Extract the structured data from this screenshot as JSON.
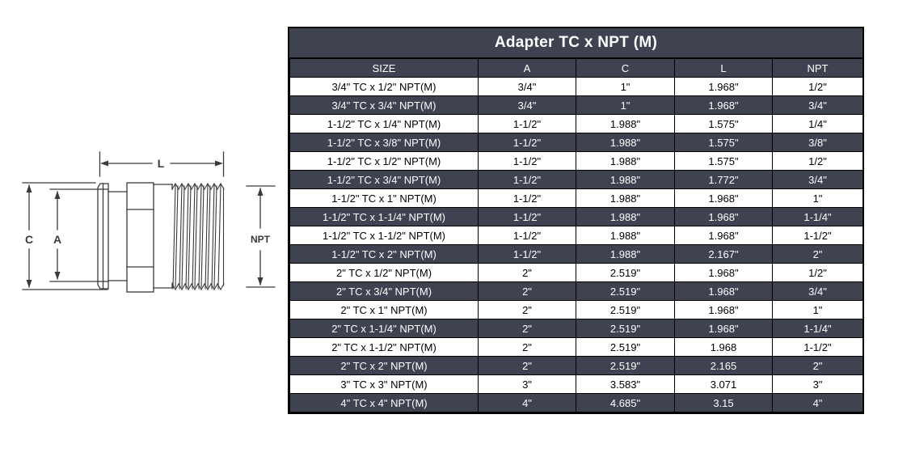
{
  "diagram": {
    "labels": {
      "length": "L",
      "outer_diameter": "C",
      "inner_diameter": "A",
      "thread": "NPT"
    }
  },
  "table": {
    "title": "Adapter TC x NPT (M)",
    "columns": [
      "SIZE",
      "A",
      "C",
      "L",
      "NPT"
    ],
    "rows": [
      [
        "3/4\" TC x 1/2\" NPT(M)",
        "3/4\"",
        "1\"",
        "1.968\"",
        "1/2\""
      ],
      [
        "3/4\" TC x 3/4\" NPT(M)",
        "3/4\"",
        "1\"",
        "1.968\"",
        "3/4\""
      ],
      [
        "1-1/2\" TC x 1/4\" NPT(M)",
        "1-1/2\"",
        "1.988\"",
        "1.575\"",
        "1/4\""
      ],
      [
        "1-1/2\" TC x 3/8\" NPT(M)",
        "1-1/2\"",
        "1.988\"",
        "1.575\"",
        "3/8\""
      ],
      [
        "1-1/2\" TC x 1/2\" NPT(M)",
        "1-1/2\"",
        "1.988\"",
        "1.575\"",
        "1/2\""
      ],
      [
        "1-1/2\" TC x 3/4\" NPT(M)",
        "1-1/2\"",
        "1.988\"",
        "1.772\"",
        "3/4\""
      ],
      [
        "1-1/2\" TC x 1\" NPT(M)",
        "1-1/2\"",
        "1.988\"",
        "1.968\"",
        "1\""
      ],
      [
        "1-1/2\" TC x 1-1/4\" NPT(M)",
        "1-1/2\"",
        "1.988\"",
        "1.968\"",
        "1-1/4\""
      ],
      [
        "1-1/2\" TC x 1-1/2\" NPT(M)",
        "1-1/2\"",
        "1.988\"",
        "1.968\"",
        "1-1/2\""
      ],
      [
        "1-1/2\" TC x 2\" NPT(M)",
        "1-1/2\"",
        "1.988\"",
        "2.167\"",
        "2\""
      ],
      [
        "2\" TC x 1/2\" NPT(M)",
        "2\"",
        "2.519\"",
        "1.968\"",
        "1/2\""
      ],
      [
        "2\" TC x 3/4\" NPT(M)",
        "2\"",
        "2.519\"",
        "1.968\"",
        "3/4\""
      ],
      [
        "2\" TC x 1\" NPT(M)",
        "2\"",
        "2.519\"",
        "1.968\"",
        "1\""
      ],
      [
        "2\" TC x 1-1/4\" NPT(M)",
        "2\"",
        "2.519\"",
        "1.968\"",
        "1-1/4\""
      ],
      [
        "2\" TC x 1-1/2\" NPT(M)",
        "2\"",
        "2.519\"",
        "1.968",
        "1-1/2\""
      ],
      [
        "2\" TC x 2\" NPT(M)",
        "2\"",
        "2.519\"",
        "2.165",
        "2\""
      ],
      [
        "3\" TC x 3\" NPT(M)",
        "3\"",
        "3.583\"",
        "3.071",
        "3\""
      ],
      [
        "4\" TC x 4\" NPT(M)",
        "4\"",
        "4.685\"",
        "3.15",
        "4\""
      ]
    ]
  },
  "colors": {
    "table_dark_bg": "#3f4250",
    "table_light_bg": "#ffffff",
    "border": "#000000",
    "line_art": "#3a3a3a"
  }
}
